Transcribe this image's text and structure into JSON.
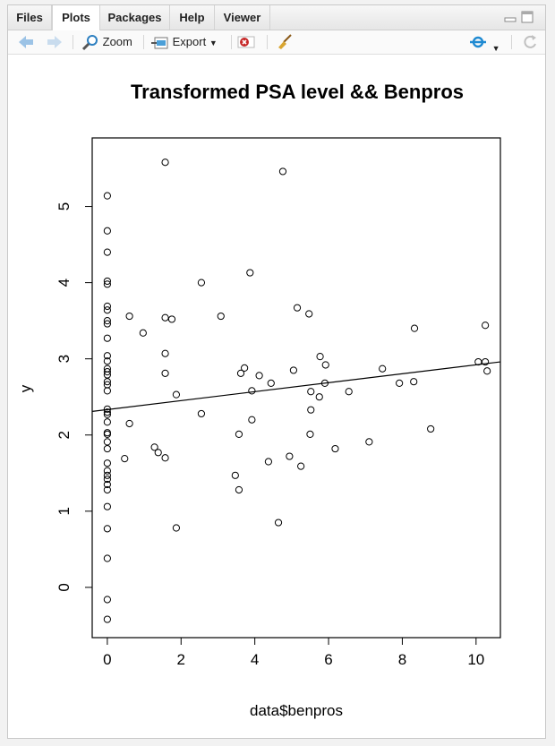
{
  "tabs": [
    {
      "label": "Files",
      "active": false
    },
    {
      "label": "Plots",
      "active": true
    },
    {
      "label": "Packages",
      "active": false
    },
    {
      "label": "Help",
      "active": false
    },
    {
      "label": "Viewer",
      "active": false
    }
  ],
  "toolbar": {
    "zoom_label": "Zoom",
    "export_label": "Export",
    "icons": [
      "arrow-left-icon",
      "arrow-right-icon",
      "zoom-icon",
      "export-icon",
      "remove-plot-icon",
      "broom-icon",
      "publish-icon",
      "refresh-icon"
    ]
  },
  "colors": {
    "accent": "#1f8ad2",
    "remove": "#c62828",
    "broom": "#c08a1e"
  },
  "chart_data": {
    "type": "scatter",
    "title": "Transformed PSA level && Benpros",
    "xlabel": "data$benpros",
    "ylabel": "y",
    "xlim": [
      -0.41,
      10.66
    ],
    "ylim": [
      -0.66,
      5.9
    ],
    "xticks": [
      0,
      2,
      4,
      6,
      8,
      10
    ],
    "yticks": [
      0,
      1,
      2,
      3,
      4,
      5
    ],
    "regression_line": {
      "x": [
        -0.41,
        10.66
      ],
      "y": [
        2.31,
        2.96
      ]
    },
    "points": [
      [
        0,
        5.14
      ],
      [
        0,
        4.68
      ],
      [
        0,
        4.4
      ],
      [
        0,
        4.02
      ],
      [
        0,
        3.98
      ],
      [
        0,
        3.69
      ],
      [
        0,
        3.64
      ],
      [
        0,
        3.5
      ],
      [
        0,
        3.46
      ],
      [
        0,
        3.27
      ],
      [
        0,
        3.04
      ],
      [
        0,
        2.97
      ],
      [
        0,
        2.87
      ],
      [
        0,
        2.83
      ],
      [
        0,
        2.79
      ],
      [
        0,
        2.7
      ],
      [
        0,
        2.66
      ],
      [
        0,
        2.58
      ],
      [
        0,
        2.34
      ],
      [
        0,
        2.3
      ],
      [
        0,
        2.27
      ],
      [
        0,
        2.17
      ],
      [
        0,
        2.03
      ],
      [
        0,
        2.01
      ],
      [
        0,
        1.91
      ],
      [
        0,
        1.82
      ],
      [
        0,
        1.63
      ],
      [
        0,
        1.53
      ],
      [
        0,
        1.47
      ],
      [
        0,
        1.42
      ],
      [
        0,
        1.35
      ],
      [
        0,
        1.28
      ],
      [
        0,
        1.06
      ],
      [
        0,
        0.77
      ],
      [
        0,
        0.38
      ],
      [
        0,
        -0.16
      ],
      [
        0,
        -0.42
      ],
      [
        0.47,
        1.69
      ],
      [
        0.6,
        2.15
      ],
      [
        0.6,
        3.56
      ],
      [
        0.97,
        3.34
      ],
      [
        1.28,
        1.84
      ],
      [
        1.38,
        1.77
      ],
      [
        1.57,
        5.58
      ],
      [
        1.57,
        3.54
      ],
      [
        1.57,
        3.07
      ],
      [
        1.57,
        2.81
      ],
      [
        1.57,
        1.7
      ],
      [
        1.75,
        3.52
      ],
      [
        1.87,
        2.53
      ],
      [
        1.87,
        0.78
      ],
      [
        2.55,
        4.0
      ],
      [
        2.55,
        2.28
      ],
      [
        3.08,
        3.56
      ],
      [
        3.47,
        1.47
      ],
      [
        3.57,
        2.01
      ],
      [
        3.57,
        1.28
      ],
      [
        3.62,
        2.81
      ],
      [
        3.72,
        2.88
      ],
      [
        3.87,
        4.13
      ],
      [
        3.92,
        2.2
      ],
      [
        3.92,
        2.58
      ],
      [
        4.12,
        2.78
      ],
      [
        4.37,
        1.65
      ],
      [
        4.44,
        2.68
      ],
      [
        4.64,
        0.85
      ],
      [
        4.76,
        5.46
      ],
      [
        4.94,
        1.72
      ],
      [
        5.05,
        2.85
      ],
      [
        5.15,
        3.67
      ],
      [
        5.25,
        1.59
      ],
      [
        5.47,
        3.59
      ],
      [
        5.5,
        2.01
      ],
      [
        5.52,
        2.57
      ],
      [
        5.52,
        2.33
      ],
      [
        5.75,
        2.5
      ],
      [
        5.77,
        3.03
      ],
      [
        5.9,
        2.68
      ],
      [
        5.92,
        2.92
      ],
      [
        6.18,
        1.82
      ],
      [
        6.55,
        2.57
      ],
      [
        7.1,
        1.91
      ],
      [
        7.46,
        2.87
      ],
      [
        7.92,
        2.68
      ],
      [
        8.31,
        2.7
      ],
      [
        8.33,
        3.4
      ],
      [
        8.77,
        2.08
      ],
      [
        10.06,
        2.96
      ],
      [
        10.25,
        3.44
      ],
      [
        10.25,
        2.96
      ],
      [
        10.3,
        2.84
      ]
    ]
  }
}
